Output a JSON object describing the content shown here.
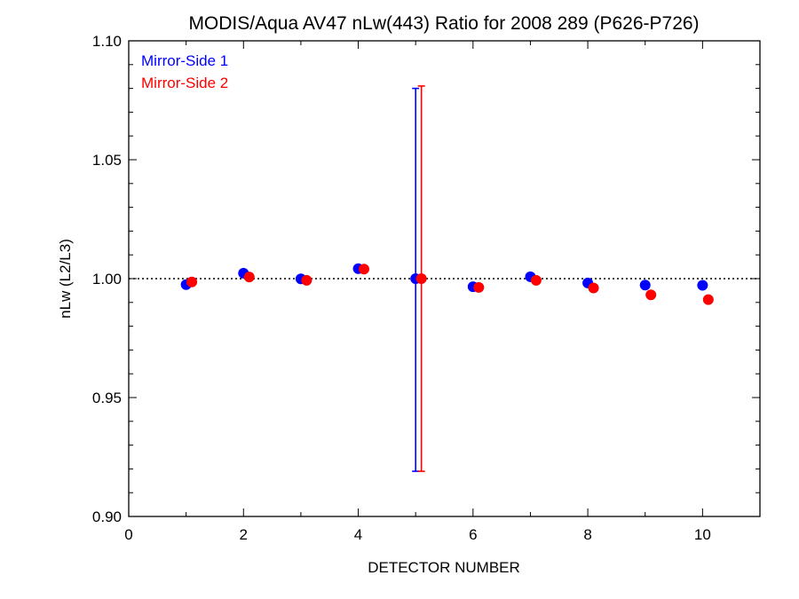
{
  "chart_data": {
    "type": "scatter",
    "title": "MODIS/Aqua AV47 nLw(443) Ratio for 2008 289 (P626-P726)",
    "xlabel": "DETECTOR NUMBER",
    "ylabel": "nLw (L2/L3)",
    "xlim": [
      0,
      11
    ],
    "ylim": [
      0.9,
      1.1
    ],
    "xticks": [
      0,
      2,
      4,
      6,
      8,
      10
    ],
    "xtick_labels": [
      "0",
      "2",
      "4",
      "6",
      "8",
      "10"
    ],
    "yticks": [
      0.9,
      0.95,
      1.0,
      1.05,
      1.1
    ],
    "ytick_labels": [
      "0.90",
      "0.95",
      "1.00",
      "1.05",
      "1.10"
    ],
    "reference_line": 1.0,
    "legend_position": "top-left",
    "series": [
      {
        "name": "Mirror-Side 1",
        "color": "#0000ff",
        "x": [
          1,
          2,
          3,
          4,
          5,
          6,
          7,
          8,
          9,
          10
        ],
        "y": [
          0.9975,
          1.0023,
          0.9999,
          1.0042,
          1.0,
          0.9966,
          1.0008,
          0.9982,
          0.9973,
          0.9972
        ],
        "error_bar": {
          "x": 5,
          "low": 0.919,
          "high": 1.08
        }
      },
      {
        "name": "Mirror-Side 2",
        "color": "#ff0000",
        "x": [
          1.1,
          2.1,
          3.1,
          4.1,
          5.1,
          6.1,
          7.1,
          8.1,
          9.1,
          10.1
        ],
        "y": [
          0.9986,
          1.0007,
          0.9993,
          1.004,
          1.0,
          0.9963,
          0.9993,
          0.9961,
          0.9932,
          0.9912
        ],
        "error_bar": {
          "x": 5.1,
          "low": 0.919,
          "high": 1.081
        }
      }
    ]
  }
}
